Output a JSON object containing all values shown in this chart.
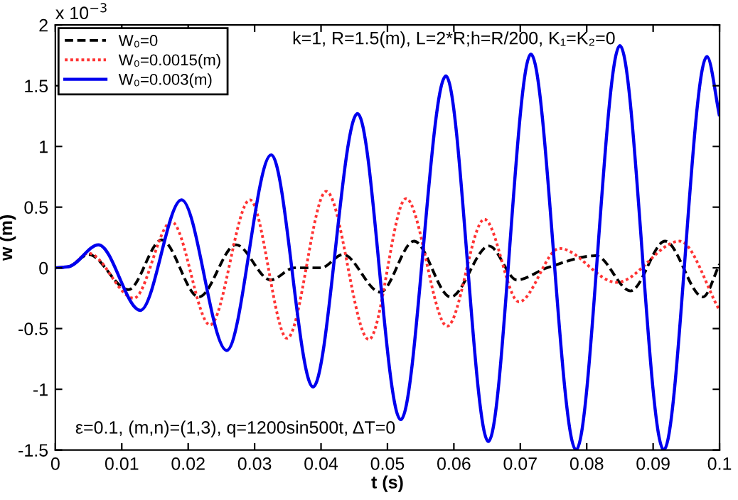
{
  "chart_data": {
    "type": "line",
    "xlabel": "t (s)",
    "ylabel": "w (m)",
    "xlim": [
      0,
      0.1
    ],
    "xticks": [
      0,
      0.01,
      0.02,
      0.03,
      0.04,
      0.05,
      0.06,
      0.07,
      0.08,
      0.09,
      0.1
    ],
    "ylim": [
      -1.5,
      2
    ],
    "yticks": [
      -1.5,
      -1,
      -0.5,
      0,
      0.5,
      1,
      1.5,
      2
    ],
    "grid": false,
    "legend": "top left",
    "marker": "none",
    "annotations": [
      "x 10$^{−3}$",
      "k=1, R=1.5(m), L=2*R;h=R/200, K₁=K₂=0",
      "ε=0.1, (m,n)=(1,3), q=1200sin500t, ΔT=0"
    ],
    "series": [
      {
        "name": "W₀=0",
        "color": "#000000",
        "line_style": "dashed",
        "x": [
          0,
          0.002,
          0.005,
          0.011,
          0.016,
          0.0216,
          0.0272,
          0.0324,
          0.036,
          0.04,
          0.0433,
          0.0489,
          0.054,
          0.0595,
          0.0653,
          0.0695,
          0.074,
          0.0814,
          0.0866,
          0.0918,
          0.0975,
          0.1
        ],
        "values": [
          0,
          0.01,
          0.11,
          -0.18,
          0.23,
          -0.24,
          0.19,
          -0.1,
          0,
          0,
          0.11,
          -0.2,
          0.22,
          -0.24,
          0.18,
          -0.1,
          0,
          0.1,
          -0.19,
          0.22,
          -0.24,
          0.03
        ]
      },
      {
        "name": "W₀=0.0015(m)",
        "color": "#ff3333",
        "line_style": "dotted",
        "x": [
          0,
          0.002,
          0.005,
          0.0118,
          0.0175,
          0.0233,
          0.0293,
          0.0349,
          0.0408,
          0.0472,
          0.0528,
          0.059,
          0.0646,
          0.0698,
          0.0759,
          0.0845,
          0.094,
          0.1
        ],
        "values": [
          0,
          0.01,
          0.12,
          -0.25,
          0.38,
          -0.47,
          0.56,
          -0.58,
          0.63,
          -0.59,
          0.57,
          -0.48,
          0.4,
          -0.28,
          0.16,
          -0.12,
          0.22,
          -0.35
        ]
      },
      {
        "name": "W₀=0.003(m)",
        "color": "#0000ee",
        "line_style": "solid",
        "x": [
          0,
          0.002,
          0.0065,
          0.0128,
          0.019,
          0.0258,
          0.0325,
          0.0388,
          0.0455,
          0.052,
          0.0588,
          0.0652,
          0.0716,
          0.0784,
          0.085,
          0.0916,
          0.0981,
          0.1
        ],
        "values": [
          0,
          0.01,
          0.19,
          -0.35,
          0.56,
          -0.68,
          0.93,
          -0.98,
          1.27,
          -1.25,
          1.58,
          -1.43,
          1.76,
          -1.5,
          1.83,
          -1.5,
          1.74,
          1.25
        ]
      }
    ]
  }
}
